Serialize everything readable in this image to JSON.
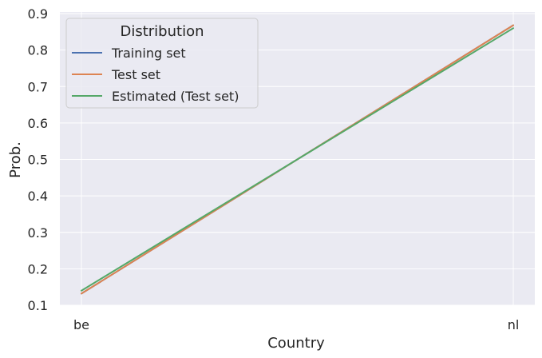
{
  "chart_data": {
    "type": "line",
    "xlabel": "Country",
    "ylabel": "Prob.",
    "categories": [
      "be",
      "nl"
    ],
    "ylim": [
      0.1,
      0.9
    ],
    "yticks": [
      0.1,
      0.2,
      0.3,
      0.4,
      0.5,
      0.6,
      0.7,
      0.8,
      0.9
    ],
    "ytick_labels": [
      "0.1",
      "0.2",
      "0.3",
      "0.4",
      "0.5",
      "0.6",
      "0.7",
      "0.8",
      "0.9"
    ],
    "grid": true,
    "legend": {
      "title": "Distribution",
      "placement": "top-left"
    },
    "series": [
      {
        "name": "Training set",
        "values": [
          0.132,
          0.868
        ],
        "color": "#4c72b0"
      },
      {
        "name": "Test set",
        "values": [
          0.132,
          0.868
        ],
        "color": "#dd8452"
      },
      {
        "name": "Estimated (Test set)",
        "values": [
          0.14,
          0.86
        ],
        "color": "#55a868"
      }
    ]
  }
}
